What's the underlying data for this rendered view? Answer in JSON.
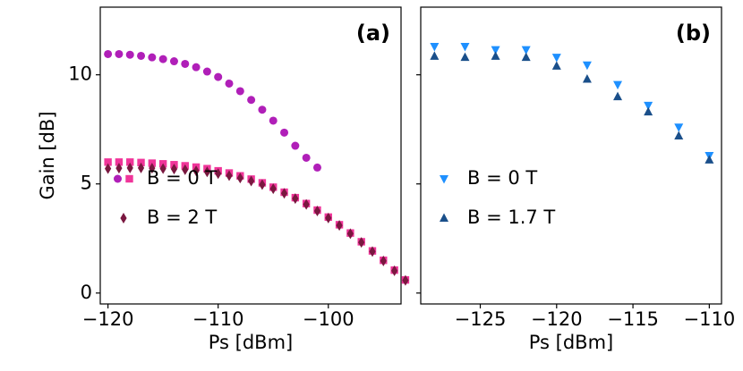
{
  "chart_data": [
    {
      "type": "scatter",
      "label": "(a)",
      "xlabel": "Ps [dBm]",
      "ylabel": "Gain [dB]",
      "xlim": [
        -120.7,
        -93.4
      ],
      "ylim": [
        -0.5,
        13.1
      ],
      "xticks": [
        {
          "value": -120,
          "label": "−120"
        },
        {
          "value": -110,
          "label": "−110"
        },
        {
          "value": -100,
          "label": "−100"
        }
      ],
      "yticks": [
        0,
        5,
        10
      ],
      "show_yticklabels": true,
      "legend": "lower left",
      "series": [
        {
          "marker": "circle",
          "color": "#b01fb8",
          "x": [
            -120,
            -119,
            -118,
            -117,
            -116,
            -115,
            -114,
            -113,
            -112,
            -111,
            -110,
            -109,
            -108,
            -107,
            -106,
            -105,
            -104,
            -103,
            -102,
            -101
          ],
          "values": [
            10.95,
            10.95,
            10.92,
            10.87,
            10.8,
            10.72,
            10.62,
            10.5,
            10.35,
            10.15,
            9.9,
            9.6,
            9.25,
            8.85,
            8.4,
            7.9,
            7.35,
            6.75,
            6.2,
            5.75
          ]
        },
        {
          "name": "B = 0 T",
          "marker": "square",
          "color": "#f0359a",
          "x": [
            -120,
            -119,
            -118,
            -117,
            -116,
            -115,
            -114,
            -113,
            -112,
            -111,
            -110,
            -109,
            -108,
            -107,
            -106,
            -105,
            -104,
            -103,
            -102,
            -101,
            -100,
            -99,
            -98,
            -97,
            -96,
            -95,
            -94,
            -93
          ],
          "values": [
            6.0,
            6.0,
            6.0,
            5.98,
            5.95,
            5.92,
            5.88,
            5.83,
            5.77,
            5.7,
            5.6,
            5.5,
            5.37,
            5.22,
            5.05,
            4.85,
            4.62,
            4.37,
            4.1,
            3.8,
            3.48,
            3.13,
            2.75,
            2.35,
            1.93,
            1.5,
            1.05,
            0.6
          ]
        },
        {
          "name": "B = 2 T",
          "marker": "diamond",
          "color": "#7a1840",
          "x": [
            -120,
            -119,
            -118,
            -117,
            -116,
            -115,
            -114,
            -113,
            -112,
            -111,
            -110,
            -109,
            -108,
            -107,
            -106,
            -105,
            -104,
            -103,
            -102,
            -101,
            -100,
            -99,
            -98,
            -97,
            -96,
            -95,
            -94,
            -93
          ],
          "values": [
            5.7,
            5.72,
            5.73,
            5.73,
            5.72,
            5.7,
            5.68,
            5.65,
            5.6,
            5.55,
            5.47,
            5.38,
            5.27,
            5.13,
            4.97,
            4.78,
            4.57,
            4.33,
            4.06,
            3.76,
            3.44,
            3.1,
            2.72,
            2.32,
            1.9,
            1.47,
            1.02,
            0.58
          ]
        }
      ]
    },
    {
      "type": "scatter",
      "label": "(b)",
      "xlabel": "Ps [dBm]",
      "xlim": [
        -128.9,
        -109.2
      ],
      "ylim": [
        -0.5,
        13.1
      ],
      "xticks": [
        {
          "value": -125,
          "label": "−125"
        },
        {
          "value": -120,
          "label": "−120"
        },
        {
          "value": -115,
          "label": "−115"
        },
        {
          "value": -110,
          "label": "−110"
        }
      ],
      "yticks": [
        0,
        5,
        10
      ],
      "show_yticklabels": false,
      "legend": "lower left",
      "series": [
        {
          "name": "B = 0 T",
          "marker": "triangle-down",
          "color": "#1e90ff",
          "x": [
            -128,
            -126,
            -124,
            -122,
            -120,
            -118,
            -116,
            -114,
            -112,
            -110
          ],
          "values": [
            11.3,
            11.3,
            11.15,
            11.15,
            10.8,
            10.45,
            9.55,
            8.6,
            7.6,
            6.3
          ]
        },
        {
          "name": "B = 1.7 T",
          "marker": "triangle-up",
          "color": "#1a4f8a",
          "x": [
            -128,
            -126,
            -124,
            -122,
            -120,
            -118,
            -116,
            -114,
            -112,
            -110
          ],
          "values": [
            10.85,
            10.8,
            10.85,
            10.8,
            10.4,
            9.8,
            9.0,
            8.3,
            7.2,
            6.1
          ]
        }
      ]
    }
  ]
}
